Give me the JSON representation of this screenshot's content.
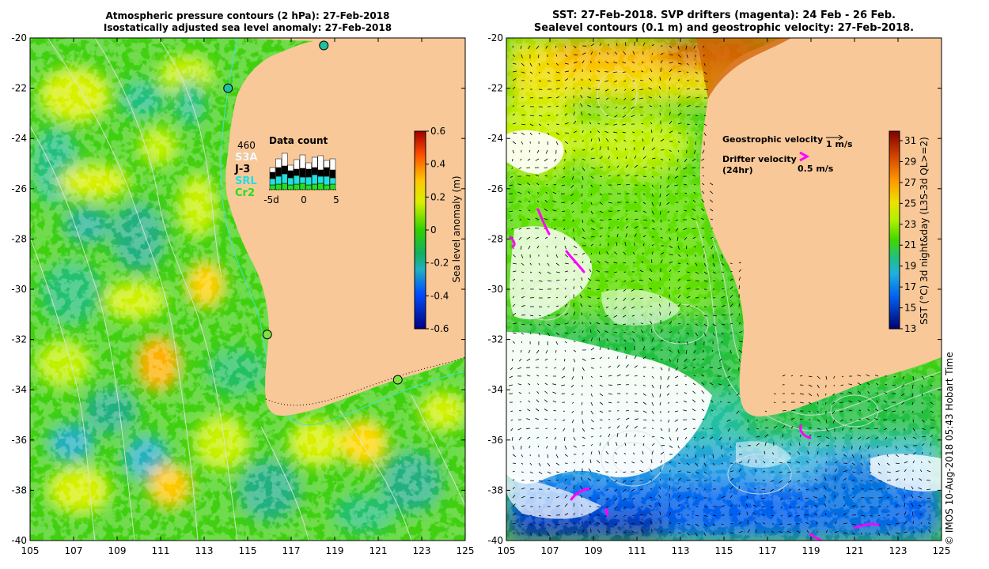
{
  "left_panel": {
    "title_line1": "Atmospheric pressure contours (2 hPa): 27-Feb-2018",
    "title_line2": "Isostatically adjusted sea level anomaly: 27-Feb-2018",
    "x_ticks": [
      "105",
      "107",
      "109",
      "111",
      "113",
      "115",
      "117",
      "119",
      "121",
      "123",
      "125"
    ],
    "y_ticks": [
      "-20",
      "-22",
      "-24",
      "-26",
      "-28",
      "-30",
      "-32",
      "-34",
      "-36",
      "-38",
      "-40"
    ],
    "colorbar": {
      "label": "Sea level anomaly (m)",
      "ticks": [
        "0.6",
        "0.4",
        "0.2",
        "0",
        "-0.2",
        "-0.4",
        "-0.6"
      ],
      "colors": [
        "#a00000",
        "#ff6000",
        "#ffd000",
        "#d8f000",
        "#60e000",
        "#10c000",
        "#20c080",
        "#20a0c0",
        "#0050ff",
        "#0010a0"
      ]
    },
    "inset": {
      "title": "Data count",
      "count": "460",
      "series": [
        {
          "label": "S3A",
          "color": "#ffffff"
        },
        {
          "label": "J-3",
          "color": "#000000"
        },
        {
          "label": "SRL",
          "color": "#20e0e0"
        },
        {
          "label": "Cr2",
          "color": "#20e020"
        }
      ],
      "x_ticks": [
        "-5d",
        "0",
        "5"
      ]
    },
    "tide_gauges": [
      {
        "lon": 114.1,
        "lat": -22.0,
        "color": "#20c0a0"
      },
      {
        "lon": 118.5,
        "lat": -20.3,
        "color": "#20c0a0"
      },
      {
        "lon": 115.9,
        "lat": -31.8,
        "color": "#80e040"
      },
      {
        "lon": 121.9,
        "lat": -33.6,
        "color": "#80e040"
      }
    ]
  },
  "right_panel": {
    "title_line1": "SST: 27-Feb-2018. SVP drifters (magenta): 24 Feb - 26 Feb.",
    "title_line2": "Sealevel contours (0.1 m) and geostrophic velocity: 27-Feb-2018.",
    "x_ticks": [
      "105",
      "107",
      "109",
      "111",
      "113",
      "115",
      "117",
      "119",
      "121",
      "123",
      "125"
    ],
    "y_ticks": [
      "-20",
      "-22",
      "-24",
      "-26",
      "-28",
      "-30",
      "-32",
      "-34",
      "-36",
      "-38",
      "-40"
    ],
    "legend": {
      "geostrophic_label": "Geostrophic velocity",
      "geostrophic_scale": "1 m/s",
      "drifter_label": "Drifter velocity",
      "drifter_sub": "(24hr)",
      "drifter_scale": "0.5 m/s"
    },
    "colorbar": {
      "label": "SST (°C) 3d night&day (L3S-3d QL>=2)",
      "ticks": [
        "31",
        "29",
        "27",
        "25",
        "23",
        "21",
        "19",
        "17",
        "15",
        "13"
      ],
      "colors": [
        "#800000",
        "#d04000",
        "#ff9000",
        "#ffd000",
        "#d0f000",
        "#60e000",
        "#20c040",
        "#20b0a0",
        "#0080e0",
        "#0030d0",
        "#000080"
      ]
    }
  },
  "stamp": "© IMOS 10-Aug-2018 05:43 Hobart Time",
  "colors": {
    "land": "#f8c898",
    "sea_base": "#40d010",
    "text": "#000000"
  }
}
